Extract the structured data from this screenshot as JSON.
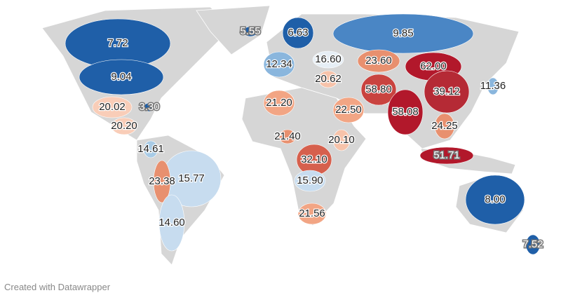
{
  "map": {
    "regions": [
      {
        "label": "7.72",
        "color": "#1f5fa8",
        "halo": false
      },
      {
        "label": "5.55",
        "color": "#1f5fa8",
        "halo": true
      },
      {
        "label": "6.63",
        "color": "#1f5fa8",
        "halo": false
      },
      {
        "label": "9.85",
        "color": "#4a86c5",
        "halo": false
      },
      {
        "label": "16.60",
        "color": "#e6eef5",
        "halo": false
      },
      {
        "label": "12.34",
        "color": "#8ab6dd",
        "halo": false
      },
      {
        "label": "23.60",
        "color": "#e8906f",
        "halo": false
      },
      {
        "label": "62.00",
        "color": "#b2182b",
        "halo": false
      },
      {
        "label": "9.04",
        "color": "#1f5fa8",
        "halo": false
      },
      {
        "label": "20.62",
        "color": "#f7c3aa",
        "halo": false
      },
      {
        "label": "58.80",
        "color": "#c9433f",
        "halo": false
      },
      {
        "label": "39.12",
        "color": "#b52a35",
        "halo": false
      },
      {
        "label": "11.36",
        "color": "#8ab6dd",
        "halo": false
      },
      {
        "label": "21.20",
        "color": "#f2a584",
        "halo": false
      },
      {
        "label": "20.02",
        "color": "#f9cdb8",
        "halo": false
      },
      {
        "label": "3.30",
        "color": "#1f5fa8",
        "halo": true
      },
      {
        "label": "22.50",
        "color": "#f2a584",
        "halo": false
      },
      {
        "label": "58.08",
        "color": "#b2182b",
        "halo": false
      },
      {
        "label": "24.25",
        "color": "#e8906f",
        "halo": false
      },
      {
        "label": "20.20",
        "color": "#f9cdb8",
        "halo": false
      },
      {
        "label": "21.40",
        "color": "#e8906f",
        "halo": false
      },
      {
        "label": "20.10",
        "color": "#f7c3aa",
        "halo": false
      },
      {
        "label": "14.61",
        "color": "#a8cbe6",
        "halo": false
      },
      {
        "label": "32.10",
        "color": "#d6604d",
        "halo": false
      },
      {
        "label": "51.71",
        "color": "#b2182b",
        "halo": true
      },
      {
        "label": "15.77",
        "color": "#c7dcef",
        "halo": false
      },
      {
        "label": "23.38",
        "color": "#e8906f",
        "halo": false
      },
      {
        "label": "15.90",
        "color": "#c7dcef",
        "halo": false
      },
      {
        "label": "8.00",
        "color": "#1f5fa8",
        "halo": false
      },
      {
        "label": "21.56",
        "color": "#f2a584",
        "halo": false
      },
      {
        "label": "14.60",
        "color": "#c7dcef",
        "halo": false
      },
      {
        "label": "7.52",
        "color": "#1f5fa8",
        "halo": true
      }
    ],
    "credit": "Created with Datawrapper"
  }
}
